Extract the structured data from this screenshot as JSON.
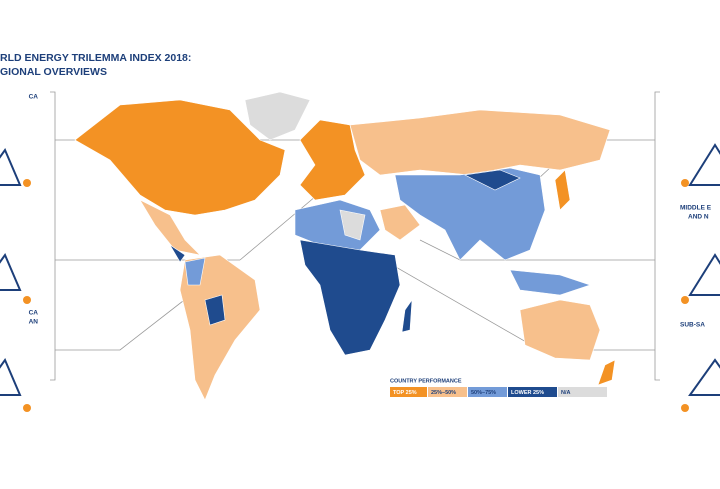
{
  "header": {
    "title_line1": "RLD ENERGY TRILEMMA INDEX 2018:",
    "title_line2": "GIONAL OVERVIEWS"
  },
  "left_panels": [
    {
      "lines": [
        "CA"
      ]
    },
    {
      "lines": [
        "CA",
        "AN"
      ]
    }
  ],
  "right_panels": [
    {
      "lines": [
        "MIDDLE E",
        "AND N"
      ]
    },
    {
      "lines": [
        "SUB-SA"
      ]
    }
  ],
  "legend": {
    "title": "COUNTRY PERFORMANCE",
    "items": [
      {
        "label": "TOP 25%",
        "color": "#f39224"
      },
      {
        "label": "25%–50%",
        "color": "#f7c08c"
      },
      {
        "label": "50%–75%",
        "color": "#739bd8"
      },
      {
        "label": "LOWER 25%",
        "color": "#1f4b8e"
      },
      {
        "label": "N/A",
        "color": "#dcdcdc"
      }
    ]
  }
}
